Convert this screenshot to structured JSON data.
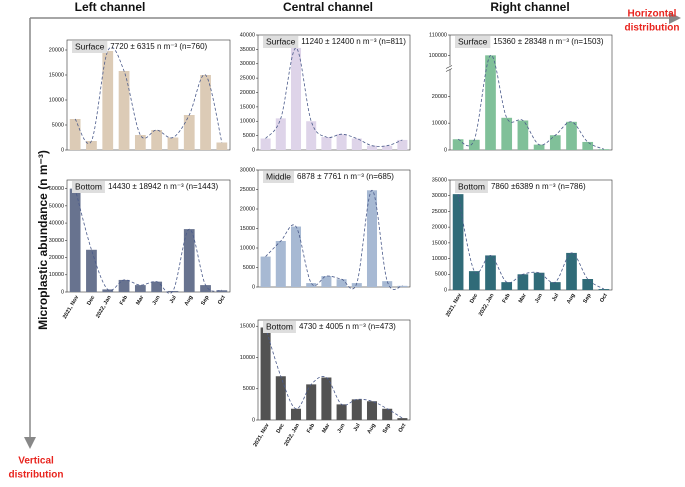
{
  "headings": [
    "Left channel",
    "Central channel",
    "Right channel"
  ],
  "horizontal_label": [
    "Horizontal",
    "distribution"
  ],
  "vertical_label": [
    "Vertical",
    "distribution"
  ],
  "y_axis_label": "Microplastic abundance (n m⁻³)",
  "chart_data": [
    {
      "type": "bar",
      "label": "Surface",
      "stats": "7720 ± 6315 n m⁻³ (n=760)",
      "color": "#dccbb6",
      "categories": [
        null,
        null,
        null,
        null,
        null,
        null,
        null,
        null,
        null,
        null
      ],
      "values": [
        6200,
        1800,
        19800,
        15800,
        3000,
        4000,
        2500,
        7000,
        15000,
        1500
      ],
      "ylim": [
        0,
        22000
      ],
      "yticks": [
        0,
        5000,
        10000,
        15000,
        20000
      ]
    },
    {
      "type": "bar",
      "label": "Bottom",
      "stats": "14430 ± 18942 n m⁻³ (n=1443)",
      "color": "#68738f",
      "categories": [
        "2021, Nov",
        "Dec",
        "2022, Jan",
        "Feb",
        "Mar",
        "Jun",
        "Jul",
        "Aug",
        "Sep",
        "Oct"
      ],
      "values": [
        60000,
        24500,
        1500,
        7000,
        4000,
        6000,
        600,
        36500,
        4000,
        1000
      ],
      "ylim": [
        0,
        65000
      ],
      "yticks": [
        0,
        10000,
        20000,
        30000,
        40000,
        50000,
        60000
      ]
    },
    {
      "type": "bar",
      "label": "Surface",
      "stats": "11240 ± 12400 n m⁻³ (n=811)",
      "color": "#ded4e9",
      "categories": [
        null,
        null,
        null,
        null,
        null,
        null,
        null,
        null,
        null,
        null
      ],
      "values": [
        4000,
        11000,
        35500,
        10000,
        4500,
        5500,
        4000,
        1500,
        1500,
        3500
      ],
      "ylim": [
        0,
        40000
      ],
      "yticks": [
        0,
        5000,
        10000,
        15000,
        20000,
        25000,
        30000,
        35000,
        40000
      ]
    },
    {
      "type": "bar",
      "label": "Middle",
      "stats": "6878 ± 7761 n m⁻³ (n=685)",
      "color": "#a7b9d3",
      "categories": [
        null,
        null,
        null,
        null,
        null,
        null,
        null,
        null,
        null,
        null
      ],
      "values": [
        7800,
        11800,
        15500,
        1000,
        2800,
        2000,
        1000,
        24800,
        1500,
        300
      ],
      "ylim": [
        0,
        30000
      ],
      "yticks": [
        0,
        5000,
        10000,
        15000,
        20000,
        25000,
        30000
      ]
    },
    {
      "type": "bar",
      "label": "Bottom",
      "stats": "4730 ± 4005 n m⁻³ (n=473)",
      "color": "#525252",
      "categories": [
        "2021, Nov",
        "Dec",
        "2022, Jan",
        "Feb",
        "Mar",
        "Jun",
        "Jul",
        "Aug",
        "Sep",
        "Oct"
      ],
      "values": [
        14800,
        7000,
        1800,
        5700,
        6800,
        2500,
        3300,
        3000,
        1800,
        300
      ],
      "ylim": [
        0,
        16000
      ],
      "yticks": [
        0,
        5000,
        10000,
        15000
      ]
    },
    {
      "type": "bar",
      "label": "Surface",
      "stats": "15360 ± 28348 n m⁻³ (n=1503)",
      "color": "#80c099",
      "categories": [
        null,
        null,
        null,
        null,
        null,
        null,
        null,
        null,
        null,
        null
      ],
      "values": [
        4000,
        3800,
        100000,
        12000,
        11000,
        2000,
        5500,
        10500,
        3000,
        300
      ],
      "ylim": [
        0,
        110000
      ],
      "ybreak": [
        30000,
        95000
      ],
      "yticks": [
        0,
        10000,
        20000,
        100000,
        110000
      ]
    },
    {
      "type": "bar",
      "label": "Bottom",
      "stats": "7860 ±6389 n m⁻³ (n=786)",
      "color": "#306b78",
      "categories": [
        "2021, Nov",
        "Dec",
        "2022, Jan",
        "Feb",
        "Mar",
        "Jun",
        "Jul",
        "Aug",
        "Sep",
        "Oct"
      ],
      "values": [
        30500,
        6000,
        11000,
        2500,
        5000,
        5500,
        2500,
        11800,
        3500,
        300
      ],
      "ylim": [
        0,
        35000
      ],
      "yticks": [
        0,
        5000,
        10000,
        15000,
        20000,
        25000,
        30000,
        35000
      ]
    }
  ]
}
